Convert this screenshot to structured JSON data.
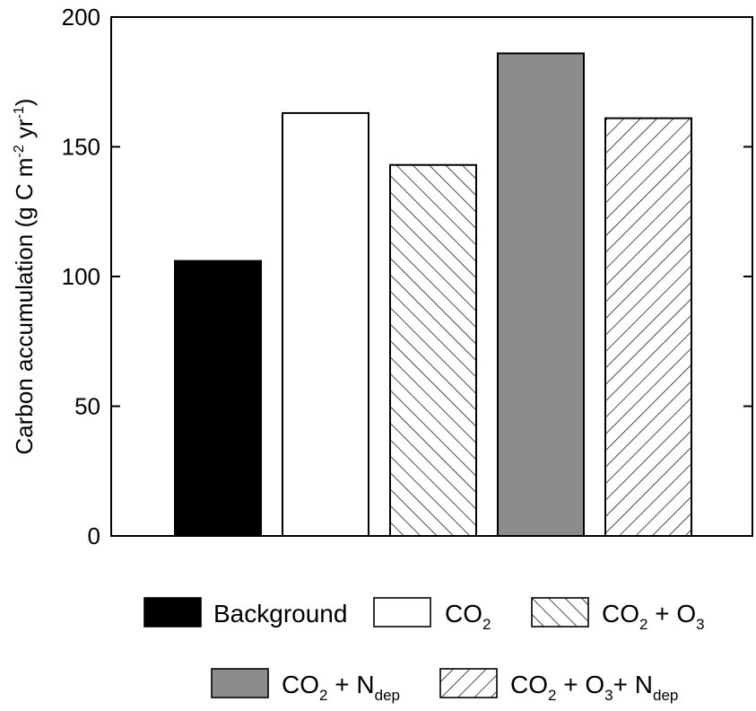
{
  "chart_data": {
    "type": "bar",
    "categories": [
      "Background",
      "CO2",
      "CO2 + O3",
      "CO2 + Ndep",
      "CO2 + O3+ Ndep"
    ],
    "values": [
      106,
      163,
      143,
      186,
      161
    ],
    "ylabel": "Carbon accumulation (g C m-2 yr-1)",
    "ylim": [
      0,
      200
    ],
    "yticks": [
      0,
      50,
      100,
      150,
      200
    ],
    "grid": false,
    "legend_placement": "bottom",
    "fills": [
      {
        "style": "solid",
        "color": "#000000"
      },
      {
        "style": "solid",
        "color": "#ffffff"
      },
      {
        "style": "hatch-backslash",
        "color": "#ffffff"
      },
      {
        "style": "solid",
        "color": "#8c8c8c"
      },
      {
        "style": "hatch-slash",
        "color": "#ffffff"
      }
    ]
  },
  "axis_title": {
    "main": "Carbon accumulation (g C m",
    "sup1": "-2",
    "mid": " yr",
    "sup2": "-1",
    "end": ")"
  },
  "legend": [
    {
      "parts": [
        {
          "t": "Background",
          "k": "n"
        }
      ]
    },
    {
      "parts": [
        {
          "t": "CO",
          "k": "n"
        },
        {
          "t": "2",
          "k": "sub"
        }
      ]
    },
    {
      "parts": [
        {
          "t": "CO",
          "k": "n"
        },
        {
          "t": "2",
          "k": "sub"
        },
        {
          "t": " + O",
          "k": "n"
        },
        {
          "t": "3",
          "k": "sub"
        }
      ]
    },
    {
      "parts": [
        {
          "t": "CO",
          "k": "n"
        },
        {
          "t": "2",
          "k": "sub"
        },
        {
          "t": " + N",
          "k": "n"
        },
        {
          "t": "dep",
          "k": "sub"
        }
      ]
    },
    {
      "parts": [
        {
          "t": "CO",
          "k": "n"
        },
        {
          "t": "2",
          "k": "sub"
        },
        {
          "t": " + O",
          "k": "n"
        },
        {
          "t": "3",
          "k": "sub"
        },
        {
          "t": "+ N",
          "k": "n"
        },
        {
          "t": "dep",
          "k": "sub"
        }
      ]
    }
  ]
}
